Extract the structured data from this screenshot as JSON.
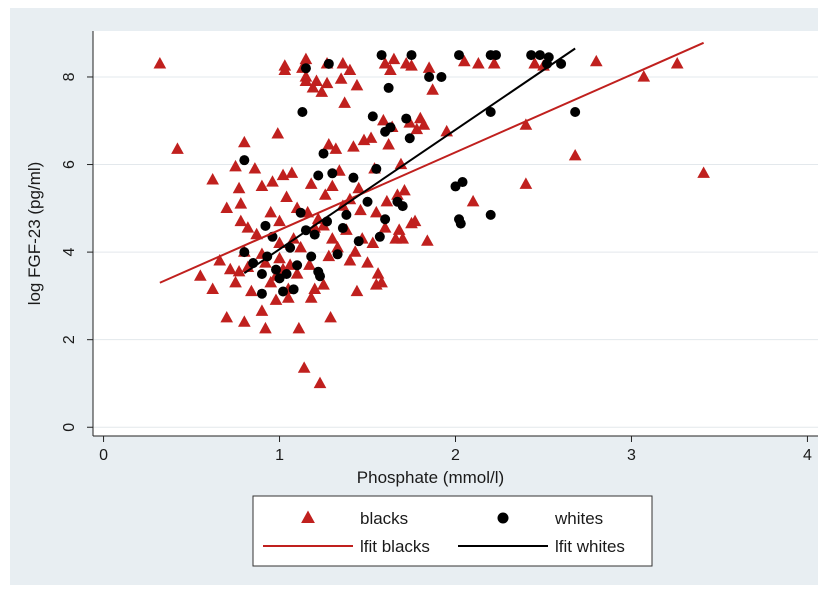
{
  "chart_data": {
    "type": "scatter",
    "xlabel": "Phosphate (mmol/l)",
    "ylabel": "log FGF-23 (pg/ml)",
    "xlim": [
      -0.06,
      4.06
    ],
    "ylim": [
      -0.2,
      9.05
    ],
    "xticks": [
      0,
      1,
      2,
      3,
      4
    ],
    "yticks": [
      0,
      2,
      4,
      6,
      8
    ],
    "grid": "horizontal",
    "legend_position": "bottom",
    "colors": {
      "blacks": "#c0201e",
      "whites": "#000000",
      "plot_bg": "#ffffff",
      "figure_bg": "#e8eef2",
      "grid": "#e3e8ec"
    },
    "series": [
      {
        "name": "blacks",
        "marker": "triangle",
        "color": "#c0201e",
        "points": [
          [
            0.32,
            8.3
          ],
          [
            0.42,
            6.35
          ],
          [
            0.55,
            3.45
          ],
          [
            0.62,
            5.65
          ],
          [
            0.62,
            3.15
          ],
          [
            0.66,
            3.8
          ],
          [
            0.7,
            5.0
          ],
          [
            0.7,
            2.5
          ],
          [
            0.72,
            3.6
          ],
          [
            0.75,
            5.95
          ],
          [
            0.75,
            3.3
          ],
          [
            0.77,
            5.45
          ],
          [
            0.77,
            3.55
          ],
          [
            0.78,
            5.1
          ],
          [
            0.78,
            4.7
          ],
          [
            0.8,
            6.5
          ],
          [
            0.8,
            4.0
          ],
          [
            0.8,
            2.4
          ],
          [
            0.82,
            4.55
          ],
          [
            0.82,
            3.65
          ],
          [
            0.84,
            3.1
          ],
          [
            0.86,
            5.9
          ],
          [
            0.87,
            4.4
          ],
          [
            0.9,
            2.65
          ],
          [
            0.9,
            3.95
          ],
          [
            0.9,
            5.5
          ],
          [
            0.92,
            3.75
          ],
          [
            0.92,
            2.25
          ],
          [
            0.95,
            3.3
          ],
          [
            0.95,
            4.9
          ],
          [
            0.96,
            5.6
          ],
          [
            0.98,
            3.45
          ],
          [
            0.98,
            2.9
          ],
          [
            0.99,
            6.7
          ],
          [
            1.0,
            4.7
          ],
          [
            1.0,
            4.2
          ],
          [
            1.0,
            3.85
          ],
          [
            1.02,
            5.75
          ],
          [
            1.02,
            3.6
          ],
          [
            1.03,
            8.25
          ],
          [
            1.03,
            8.15
          ],
          [
            1.04,
            5.25
          ],
          [
            1.05,
            2.95
          ],
          [
            1.05,
            3.15
          ],
          [
            1.06,
            3.7
          ],
          [
            1.07,
            5.8
          ],
          [
            1.08,
            4.3
          ],
          [
            1.1,
            5.0
          ],
          [
            1.1,
            3.5
          ],
          [
            1.11,
            2.25
          ],
          [
            1.12,
            4.1
          ],
          [
            1.13,
            8.2
          ],
          [
            1.14,
            1.35
          ],
          [
            1.15,
            8.4
          ],
          [
            1.15,
            8.0
          ],
          [
            1.15,
            7.9
          ],
          [
            1.16,
            4.9
          ],
          [
            1.17,
            3.7
          ],
          [
            1.18,
            2.95
          ],
          [
            1.18,
            5.55
          ],
          [
            1.19,
            7.75
          ],
          [
            1.2,
            3.15
          ],
          [
            1.2,
            4.55
          ],
          [
            1.21,
            7.9
          ],
          [
            1.22,
            4.75
          ],
          [
            1.23,
            1.0
          ],
          [
            1.24,
            7.65
          ],
          [
            1.25,
            3.25
          ],
          [
            1.25,
            4.6
          ],
          [
            1.26,
            5.3
          ],
          [
            1.27,
            7.85
          ],
          [
            1.27,
            8.3
          ],
          [
            1.28,
            6.45
          ],
          [
            1.28,
            3.9
          ],
          [
            1.29,
            2.5
          ],
          [
            1.3,
            5.5
          ],
          [
            1.3,
            4.3
          ],
          [
            1.32,
            6.35
          ],
          [
            1.33,
            4.1
          ],
          [
            1.34,
            5.85
          ],
          [
            1.35,
            7.95
          ],
          [
            1.36,
            5.05
          ],
          [
            1.36,
            8.3
          ],
          [
            1.37,
            7.4
          ],
          [
            1.38,
            4.5
          ],
          [
            1.4,
            8.15
          ],
          [
            1.4,
            3.8
          ],
          [
            1.4,
            5.2
          ],
          [
            1.42,
            6.4
          ],
          [
            1.43,
            4.0
          ],
          [
            1.44,
            7.8
          ],
          [
            1.44,
            3.1
          ],
          [
            1.45,
            5.45
          ],
          [
            1.46,
            4.95
          ],
          [
            1.47,
            4.3
          ],
          [
            1.48,
            6.55
          ],
          [
            1.5,
            3.75
          ],
          [
            1.52,
            6.6
          ],
          [
            1.53,
            4.2
          ],
          [
            1.54,
            5.9
          ],
          [
            1.55,
            4.9
          ],
          [
            1.55,
            3.25
          ],
          [
            1.56,
            3.5
          ],
          [
            1.58,
            3.3
          ],
          [
            1.59,
            7.0
          ],
          [
            1.6,
            8.3
          ],
          [
            1.6,
            4.55
          ],
          [
            1.61,
            5.15
          ],
          [
            1.62,
            6.45
          ],
          [
            1.63,
            8.15
          ],
          [
            1.64,
            6.85
          ],
          [
            1.65,
            8.4
          ],
          [
            1.66,
            4.3
          ],
          [
            1.67,
            5.3
          ],
          [
            1.68,
            4.5
          ],
          [
            1.69,
            6.0
          ],
          [
            1.7,
            4.3
          ],
          [
            1.71,
            5.4
          ],
          [
            1.72,
            8.3
          ],
          [
            1.74,
            6.95
          ],
          [
            1.75,
            4.65
          ],
          [
            1.75,
            8.25
          ],
          [
            1.77,
            4.7
          ],
          [
            1.78,
            6.8
          ],
          [
            1.8,
            7.05
          ],
          [
            1.82,
            6.9
          ],
          [
            1.84,
            4.25
          ],
          [
            1.85,
            8.2
          ],
          [
            1.87,
            7.7
          ],
          [
            1.95,
            6.75
          ],
          [
            2.05,
            8.35
          ],
          [
            2.1,
            5.15
          ],
          [
            2.13,
            8.3
          ],
          [
            2.22,
            8.3
          ],
          [
            2.4,
            6.9
          ],
          [
            2.4,
            5.55
          ],
          [
            2.45,
            8.3
          ],
          [
            2.5,
            8.25
          ],
          [
            2.68,
            6.2
          ],
          [
            2.8,
            8.35
          ],
          [
            3.07,
            8.0
          ],
          [
            3.26,
            8.3
          ],
          [
            3.41,
            5.8
          ]
        ]
      },
      {
        "name": "whites",
        "marker": "circle",
        "color": "#000000",
        "points": [
          [
            0.8,
            6.1
          ],
          [
            0.8,
            4.0
          ],
          [
            0.85,
            3.75
          ],
          [
            0.9,
            3.05
          ],
          [
            0.9,
            3.5
          ],
          [
            0.92,
            4.6
          ],
          [
            0.93,
            3.9
          ],
          [
            0.96,
            4.35
          ],
          [
            0.98,
            3.6
          ],
          [
            1.0,
            3.4
          ],
          [
            1.02,
            3.1
          ],
          [
            1.04,
            3.5
          ],
          [
            1.06,
            4.1
          ],
          [
            1.08,
            3.15
          ],
          [
            1.1,
            3.7
          ],
          [
            1.12,
            4.9
          ],
          [
            1.13,
            7.2
          ],
          [
            1.15,
            8.2
          ],
          [
            1.15,
            4.5
          ],
          [
            1.18,
            3.9
          ],
          [
            1.2,
            4.4
          ],
          [
            1.22,
            3.55
          ],
          [
            1.22,
            5.75
          ],
          [
            1.23,
            3.45
          ],
          [
            1.25,
            6.25
          ],
          [
            1.27,
            4.7
          ],
          [
            1.28,
            8.3
          ],
          [
            1.3,
            5.8
          ],
          [
            1.33,
            3.95
          ],
          [
            1.36,
            4.55
          ],
          [
            1.38,
            4.85
          ],
          [
            1.42,
            5.7
          ],
          [
            1.45,
            4.25
          ],
          [
            1.5,
            5.15
          ],
          [
            1.53,
            7.1
          ],
          [
            1.55,
            5.9
          ],
          [
            1.57,
            4.35
          ],
          [
            1.58,
            8.5
          ],
          [
            1.6,
            4.75
          ],
          [
            1.6,
            6.75
          ],
          [
            1.62,
            7.75
          ],
          [
            1.63,
            6.85
          ],
          [
            1.67,
            5.15
          ],
          [
            1.7,
            5.05
          ],
          [
            1.72,
            7.05
          ],
          [
            1.74,
            6.6
          ],
          [
            1.75,
            8.5
          ],
          [
            1.85,
            8.0
          ],
          [
            1.92,
            8.0
          ],
          [
            2.0,
            5.5
          ],
          [
            2.02,
            4.75
          ],
          [
            2.02,
            8.5
          ],
          [
            2.03,
            4.65
          ],
          [
            2.04,
            5.6
          ],
          [
            2.2,
            4.85
          ],
          [
            2.2,
            7.2
          ],
          [
            2.2,
            8.5
          ],
          [
            2.23,
            8.5
          ],
          [
            2.43,
            8.5
          ],
          [
            2.48,
            8.5
          ],
          [
            2.52,
            8.3
          ],
          [
            2.53,
            8.45
          ],
          [
            2.6,
            8.3
          ],
          [
            2.68,
            7.2
          ]
        ]
      }
    ],
    "fit_lines": [
      {
        "name": "lfit blacks",
        "color": "#c0201e",
        "x": [
          0.32,
          3.41
        ],
        "y": [
          3.3,
          8.78
        ]
      },
      {
        "name": "lfit whites",
        "color": "#000000",
        "x": [
          0.8,
          2.68
        ],
        "y": [
          3.52,
          8.65
        ]
      }
    ],
    "legend": [
      {
        "key": "blacks",
        "label": "blacks",
        "kind": "triangle",
        "color": "#c0201e"
      },
      {
        "key": "whites",
        "label": "whites",
        "kind": "circle",
        "color": "#000000"
      },
      {
        "key": "lfit-blacks",
        "label": "lfit blacks",
        "kind": "line",
        "color": "#c0201e"
      },
      {
        "key": "lfit-whites",
        "label": "lfit whites",
        "kind": "line",
        "color": "#000000"
      }
    ]
  }
}
